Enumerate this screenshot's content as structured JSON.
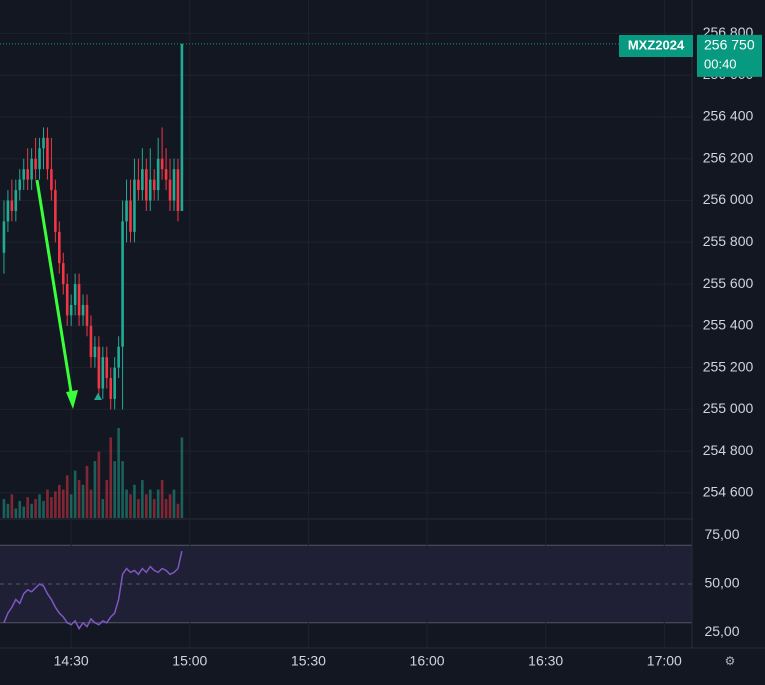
{
  "chart_data": {
    "type": "candlestick",
    "symbol": "MXZ2024",
    "price_tag": {
      "value": 256750,
      "label": "256 750"
    },
    "countdown": "00:40",
    "up_color": "#22ab94",
    "down_color": "#f23645",
    "x": [
      853,
      854,
      855,
      856,
      857,
      858,
      859,
      860,
      861,
      862,
      863,
      864,
      865,
      866,
      867,
      868,
      869,
      870,
      871,
      872,
      873,
      874,
      875,
      876,
      877,
      878,
      879,
      880,
      881,
      882,
      883,
      884,
      885,
      886,
      887,
      888,
      889,
      890,
      891,
      892,
      893,
      894,
      895,
      896,
      897,
      898
    ],
    "open": [
      255750,
      255900,
      256000,
      255950,
      256050,
      256100,
      256150,
      256100,
      256200,
      256150,
      256250,
      256300,
      256150,
      256050,
      255850,
      255700,
      255600,
      255450,
      255500,
      255600,
      255450,
      255500,
      255400,
      255250,
      255300,
      255100,
      255250,
      255150,
      255050,
      255200,
      255300,
      255900,
      256000,
      255850,
      256100,
      256050,
      256150,
      256000,
      256100,
      256050,
      256200,
      256150,
      256100,
      256000,
      256150,
      255950
    ],
    "high": [
      256000,
      256050,
      256100,
      256100,
      256150,
      256200,
      256250,
      256250,
      256300,
      256300,
      256350,
      256350,
      256300,
      256100,
      255900,
      255750,
      255650,
      255550,
      255650,
      255650,
      255550,
      255550,
      255450,
      255350,
      255350,
      255300,
      255300,
      255200,
      255250,
      255350,
      256000,
      256100,
      256100,
      256200,
      256200,
      256250,
      256200,
      256250,
      256150,
      256300,
      256350,
      256250,
      256200,
      256200,
      256200,
      256750
    ],
    "low": [
      255650,
      255850,
      255900,
      255900,
      256000,
      256050,
      256050,
      256050,
      256100,
      256100,
      256150,
      256100,
      256000,
      255800,
      255650,
      255550,
      255400,
      255400,
      255450,
      255400,
      255400,
      255350,
      255200,
      255200,
      255050,
      255050,
      255100,
      255000,
      255000,
      255150,
      255000,
      255800,
      255800,
      255800,
      256000,
      256000,
      255950,
      255950,
      256000,
      256000,
      256100,
      256050,
      255950,
      255950,
      255900,
      255950
    ],
    "close": [
      255900,
      256000,
      255950,
      256050,
      256100,
      256150,
      256100,
      256200,
      256150,
      256250,
      256300,
      256150,
      256050,
      255850,
      255700,
      255600,
      255450,
      255500,
      255600,
      255450,
      255500,
      255400,
      255250,
      255300,
      255100,
      255250,
      255150,
      255050,
      255200,
      255300,
      255900,
      256000,
      255850,
      256100,
      256050,
      256150,
      256000,
      256100,
      256050,
      256200,
      256150,
      256100,
      256000,
      256150,
      255950,
      256750
    ],
    "volume": [
      20,
      15,
      25,
      10,
      18,
      12,
      22,
      15,
      20,
      25,
      18,
      30,
      22,
      28,
      35,
      30,
      45,
      25,
      50,
      40,
      35,
      55,
      30,
      60,
      70,
      20,
      40,
      85,
      60,
      95,
      60,
      30,
      25,
      35,
      20,
      40,
      25,
      30,
      20,
      30,
      40,
      20,
      25,
      30,
      15,
      85
    ],
    "rsi": [
      30,
      35,
      38,
      42,
      40,
      45,
      47,
      46,
      48,
      50,
      49,
      45,
      42,
      38,
      35,
      33,
      30,
      29,
      31,
      27,
      30,
      28,
      32,
      30,
      29,
      31,
      30,
      33,
      35,
      42,
      55,
      58,
      56,
      57,
      55,
      58,
      56,
      59,
      57,
      56,
      58,
      57,
      55,
      56,
      58,
      67
    ],
    "rsi_color": "#7e57c2",
    "rsi_levels": [
      70,
      50,
      30
    ],
    "xlim": [
      852,
      1027
    ],
    "xticks": [
      {
        "value": 870,
        "label": "14:30"
      },
      {
        "value": 900,
        "label": "15:00"
      },
      {
        "value": 930,
        "label": "15:30"
      },
      {
        "value": 960,
        "label": "16:00"
      },
      {
        "value": 990,
        "label": "16:30"
      },
      {
        "value": 1020,
        "label": "17:00"
      }
    ],
    "ylim": [
      254480,
      256960
    ],
    "yticks": [
      {
        "value": 254600,
        "label": "254 600"
      },
      {
        "value": 254800,
        "label": "254 800"
      },
      {
        "value": 255000,
        "label": "255 000"
      },
      {
        "value": 255200,
        "label": "255 200"
      },
      {
        "value": 255400,
        "label": "255 400"
      },
      {
        "value": 255600,
        "label": "255 600"
      },
      {
        "value": 255800,
        "label": "255 800"
      },
      {
        "value": 256000,
        "label": "256 000"
      },
      {
        "value": 256200,
        "label": "256 200"
      },
      {
        "value": 256400,
        "label": "256 400"
      },
      {
        "value": 256600,
        "label": "256 600"
      },
      {
        "value": 256800,
        "label": "256 800"
      }
    ],
    "y2lim": [
      17,
      83
    ],
    "y2ticks": [
      {
        "value": 25,
        "label": "25,00"
      },
      {
        "value": 50,
        "label": "50,00"
      },
      {
        "value": 75,
        "label": "75,00"
      }
    ],
    "grid": true
  }
}
